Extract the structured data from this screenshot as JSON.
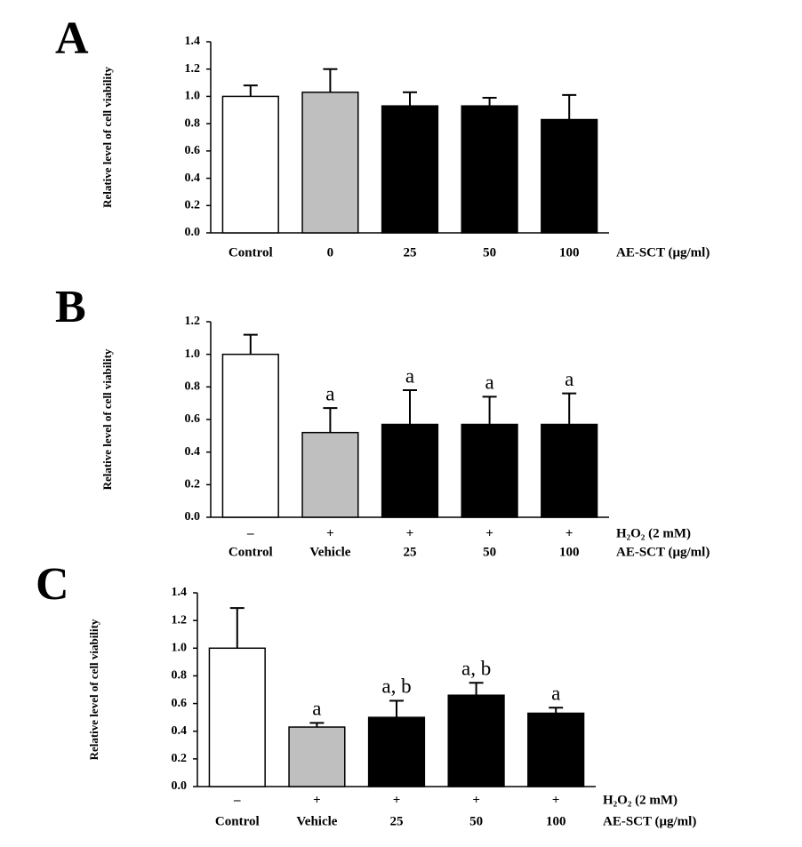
{
  "chart_data": [
    {
      "type": "bar",
      "panel_label": "A",
      "y_label": "Relative level of cell viability",
      "categories": [
        "Control",
        "0",
        "25",
        "50",
        "100"
      ],
      "x_label": "AE-SCT  (μg/ml)",
      "values": [
        1.0,
        1.03,
        0.93,
        0.93,
        0.83
      ],
      "errors": [
        0.08,
        0.17,
        0.1,
        0.06,
        0.18
      ],
      "colors": [
        "#ffffff",
        "#bfbfbf",
        "#000000",
        "#000000",
        "#000000"
      ],
      "ylim": [
        0,
        1.4
      ],
      "yticks": [
        {
          "value": 0,
          "label": "0.0"
        },
        {
          "value": 0.2,
          "label": "0.2"
        },
        {
          "value": 0.4,
          "label": "0.4"
        },
        {
          "value": 0.6,
          "label": "0.6"
        },
        {
          "value": 0.8,
          "label": "0.8"
        },
        {
          "value": 1,
          "label": "1.0"
        },
        {
          "value": 1.2,
          "label": "1.2"
        },
        {
          "value": 1.4,
          "label": "1.4"
        }
      ]
    },
    {
      "type": "bar",
      "panel_label": "B",
      "y_label": "Relative level of cell viability",
      "categories": [
        "Control",
        "Vehicle",
        "25",
        "50",
        "100"
      ],
      "x_label": "AE-SCT (μg/ml)",
      "treatment_label": "H₂O₂ (2 mM)",
      "treatments": [
        "–",
        "+",
        "+",
        "+",
        "+"
      ],
      "values": [
        1.0,
        0.52,
        0.57,
        0.57,
        0.57
      ],
      "errors": [
        0.12,
        0.15,
        0.21,
        0.17,
        0.19
      ],
      "annotations": [
        null,
        "a",
        "a",
        "a",
        "a"
      ],
      "colors": [
        "#ffffff",
        "#bfbfbf",
        "#000000",
        "#000000",
        "#000000"
      ],
      "ylim": [
        0,
        1.2
      ],
      "yticks": [
        {
          "value": 0,
          "label": "0.0"
        },
        {
          "value": 0.2,
          "label": "0.2"
        },
        {
          "value": 0.4,
          "label": "0.4"
        },
        {
          "value": 0.6,
          "label": "0.6"
        },
        {
          "value": 0.8,
          "label": "0.8"
        },
        {
          "value": 1,
          "label": "1.0"
        },
        {
          "value": 1.2,
          "label": "1.2"
        }
      ]
    },
    {
      "type": "bar",
      "panel_label": "C",
      "y_label": "Relative level of cell viability",
      "categories": [
        "Control",
        "Vehicle",
        "25",
        "50",
        "100"
      ],
      "x_label": "AE-SCT (μg/ml)",
      "treatment_label": "H₂O₂ (2 mM)",
      "treatments": [
        "–",
        "+",
        "+",
        "+",
        "+"
      ],
      "values": [
        1.0,
        0.43,
        0.5,
        0.66,
        0.53
      ],
      "errors": [
        0.29,
        0.03,
        0.12,
        0.09,
        0.04
      ],
      "annotations": [
        null,
        "a",
        "a, b",
        "a, b",
        "a"
      ],
      "colors": [
        "#ffffff",
        "#bfbfbf",
        "#000000",
        "#000000",
        "#000000"
      ],
      "ylim": [
        0,
        1.4
      ],
      "yticks": [
        {
          "value": 0,
          "label": "0.0"
        },
        {
          "value": 0.2,
          "label": "0.2"
        },
        {
          "value": 0.4,
          "label": "0.4"
        },
        {
          "value": 0.6,
          "label": "0.6"
        },
        {
          "value": 0.8,
          "label": "0.8"
        },
        {
          "value": 1,
          "label": "1.0"
        },
        {
          "value": 1.2,
          "label": "1.2"
        },
        {
          "value": 1.4,
          "label": "1.4"
        }
      ]
    }
  ]
}
